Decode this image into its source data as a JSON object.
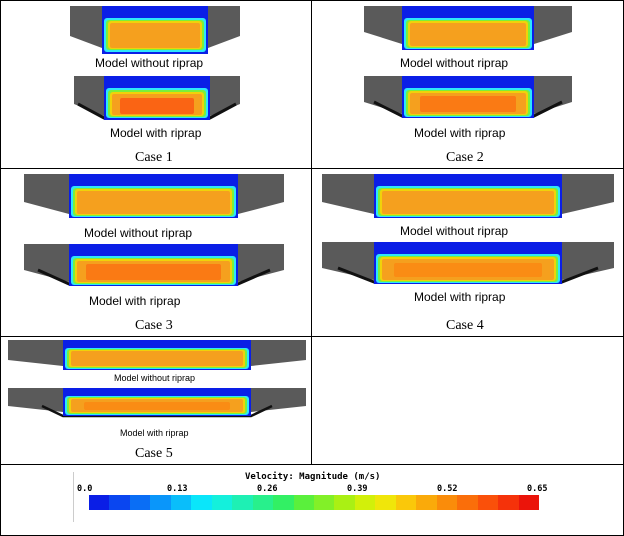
{
  "cases": [
    {
      "title": "Case 1",
      "top_label": "Model without  riprap",
      "bottom_label": "Model with riprap"
    },
    {
      "title": "Case 2",
      "top_label": "Model without  riprap",
      "bottom_label": "Model with riprap"
    },
    {
      "title": "Case 3",
      "top_label": "Model without  riprap",
      "bottom_label": "Model with riprap"
    },
    {
      "title": "Case 4",
      "top_label": "Model without  riprap",
      "bottom_label": "Model with riprap"
    },
    {
      "title": "Case 5",
      "top_label": "Model without  riprap",
      "bottom_label": "Model with riprap"
    }
  ],
  "legend": {
    "title": "Velocity: Magnitude (m/s)",
    "ticks": [
      "0.0",
      "0.13",
      "0.26",
      "0.39",
      "0.52",
      "0.65"
    ],
    "colors": [
      "#0a1ee6",
      "#0a46f0",
      "#0a6ef5",
      "#0a96fa",
      "#0abefa",
      "#0ae6fa",
      "#14f0dc",
      "#1ef0b4",
      "#28f08c",
      "#32f064",
      "#5af03c",
      "#82f028",
      "#aaf014",
      "#d2f00a",
      "#f0e60a",
      "#fac80a",
      "#faaa0a",
      "#fa8c0a",
      "#fa6e0a",
      "#fa500a",
      "#f5320a",
      "#eb140a"
    ]
  },
  "colors": {
    "water": "#0a1ee6",
    "bank": "#5a5a5a",
    "core": "#f5a01e",
    "core_fast": "#fa6414"
  }
}
